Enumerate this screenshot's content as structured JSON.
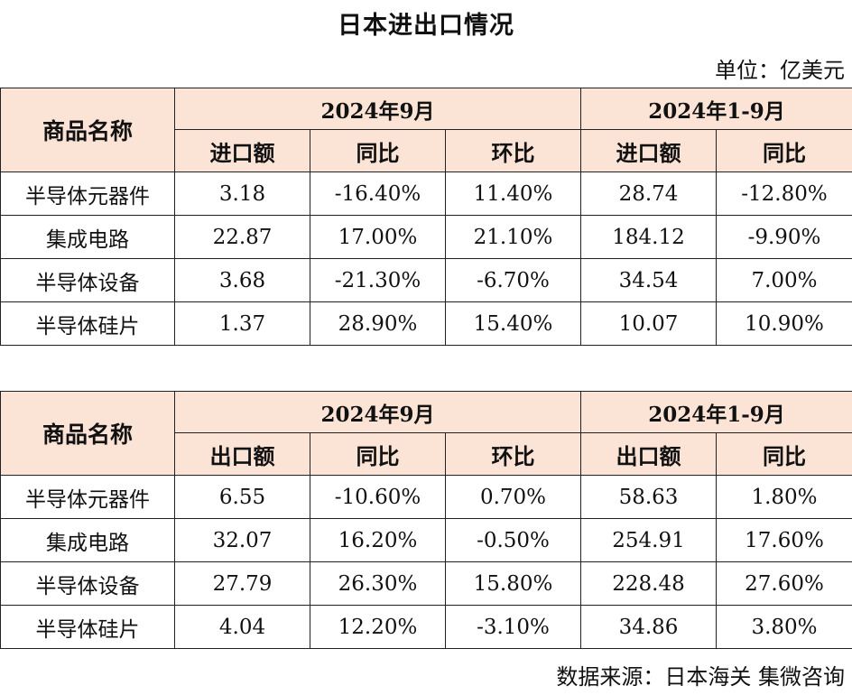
{
  "title": "日本进出口情况",
  "unit_note": "单位：亿美元",
  "import_table": {
    "corner_label": "商品名称",
    "period_month": "2024年9月",
    "period_ytd": "2024年1-9月",
    "col_month_value": "进口额",
    "col_month_yoy": "同比",
    "col_month_mom": "环比",
    "col_ytd_value": "进口额",
    "col_ytd_yoy": "同比",
    "rows": [
      {
        "name": "半导体元器件",
        "month_value": "3.18",
        "month_yoy": "-16.40%",
        "month_mom": "11.40%",
        "ytd_value": "28.74",
        "ytd_yoy": "-12.80%"
      },
      {
        "name": "集成电路",
        "month_value": "22.87",
        "month_yoy": "17.00%",
        "month_mom": "21.10%",
        "ytd_value": "184.12",
        "ytd_yoy": "-9.90%"
      },
      {
        "name": "半导体设备",
        "month_value": "3.68",
        "month_yoy": "-21.30%",
        "month_mom": "-6.70%",
        "ytd_value": "34.54",
        "ytd_yoy": "7.00%"
      },
      {
        "name": "半导体硅片",
        "month_value": "1.37",
        "month_yoy": "28.90%",
        "month_mom": "15.40%",
        "ytd_value": "10.07",
        "ytd_yoy": "10.90%"
      }
    ]
  },
  "export_table": {
    "corner_label": "商品名称",
    "period_month": "2024年9月",
    "period_ytd": "2024年1-9月",
    "col_month_value": "出口额",
    "col_month_yoy": "同比",
    "col_month_mom": "环比",
    "col_ytd_value": "出口额",
    "col_ytd_yoy": "同比",
    "rows": [
      {
        "name": "半导体元器件",
        "month_value": "6.55",
        "month_yoy": "-10.60%",
        "month_mom": "0.70%",
        "ytd_value": "58.63",
        "ytd_yoy": "1.80%"
      },
      {
        "name": "集成电路",
        "month_value": "32.07",
        "month_yoy": "16.20%",
        "month_mom": "-0.50%",
        "ytd_value": "254.91",
        "ytd_yoy": "17.60%"
      },
      {
        "name": "半导体设备",
        "month_value": "27.79",
        "month_yoy": "26.30%",
        "month_mom": "15.80%",
        "ytd_value": "228.48",
        "ytd_yoy": "27.60%"
      },
      {
        "name": "半导体硅片",
        "month_value": "4.04",
        "month_yoy": "12.20%",
        "month_mom": "-3.10%",
        "ytd_value": "34.86",
        "ytd_yoy": "3.80%"
      }
    ]
  },
  "source_note": "数据来源：日本海关 集微咨询",
  "colors": {
    "header_fill": "#fbe3d6",
    "border": "#222222",
    "text": "#111111"
  }
}
